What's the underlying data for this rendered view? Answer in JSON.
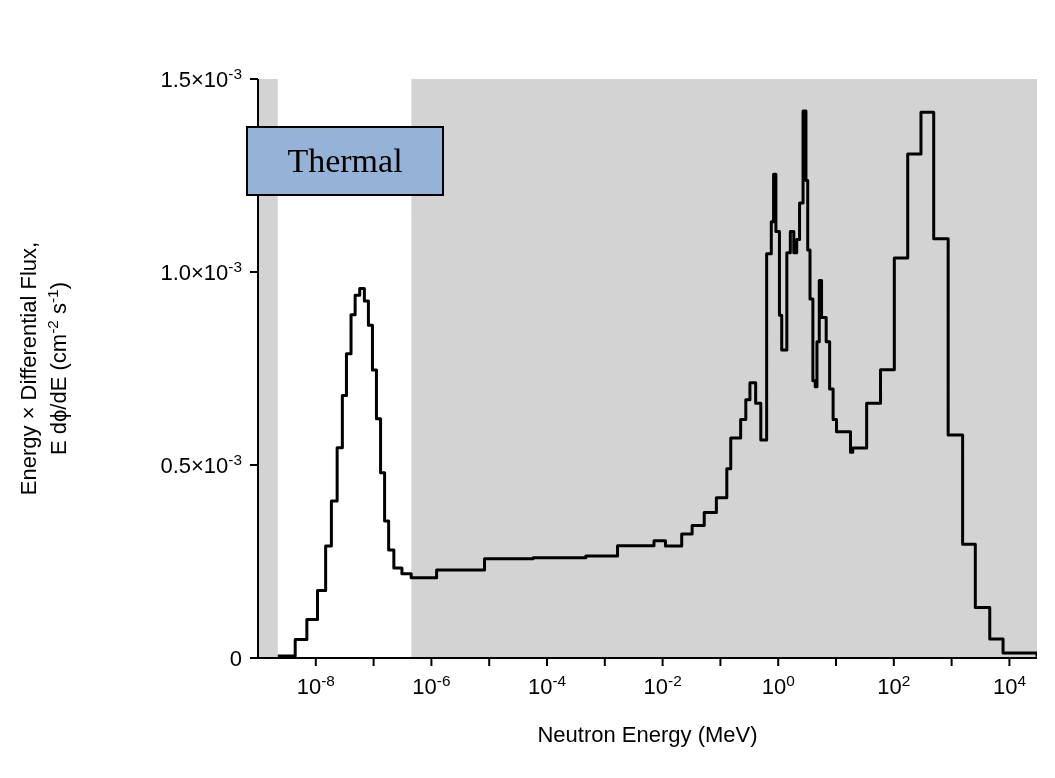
{
  "chart_data": {
    "type": "step",
    "xlabel": "Neutron Energy  (MeV)",
    "ylabel": "Energy × Differential Flux,\nE dϕ/dE  (cm$^{-2}$ s$^{-1}$)",
    "log": "x",
    "grid": false,
    "legend": false,
    "marker": "none",
    "line_style": "solid",
    "xlim": [
      1e-09,
      30000
    ],
    "ylim": [
      0,
      0.0015
    ],
    "xticks": [
      {
        "value": 1e-08,
        "label": "10$^{-8}$"
      },
      {
        "value": 1e-07,
        "label": null
      },
      {
        "value": 1e-06,
        "label": "10$^{-6}$"
      },
      {
        "value": 1e-05,
        "label": null
      },
      {
        "value": 0.0001,
        "label": "10$^{-4}$"
      },
      {
        "value": 0.001,
        "label": null
      },
      {
        "value": 0.01,
        "label": "10$^{-2}$"
      },
      {
        "value": 0.1,
        "label": null
      },
      {
        "value": 1,
        "label": "10$^{0}$"
      },
      {
        "value": 10,
        "label": null
      },
      {
        "value": 100,
        "label": "10$^{2}$"
      },
      {
        "value": 1000,
        "label": null
      },
      {
        "value": 10000,
        "label": "10$^{4}$"
      }
    ],
    "yticks": [
      0,
      {
        "value": 0.0005,
        "label": "0.5×10$^{-3}$"
      },
      {
        "value": 0.001,
        "label": "1.0×10$^{-3}$"
      },
      {
        "value": 0.0015,
        "label": "1.5×10$^{-3}$"
      }
    ],
    "bands": [
      {
        "axis": "x",
        "from": 1e-09,
        "to": 2.2e-09,
        "color": "#c8c8c8"
      },
      {
        "axis": "x",
        "from": 4.5e-07,
        "to": 30000,
        "color": "#c8c8c8"
      }
    ],
    "annotations": [
      "Thermal"
    ],
    "series": [
      {
        "color": "#000000",
        "x": [
          2.2e-09,
          4.4e-09,
          7e-09,
          1.07e-08,
          1.48e-08,
          1.86e-08,
          2.34e-08,
          2.88e-08,
          3.39e-08,
          4.07e-08,
          4.79e-08,
          5.75e-08,
          6.92e-08,
          8.13e-08,
          9.55e-08,
          1.12e-07,
          1.32e-07,
          1.55e-07,
          1.82e-07,
          2.24e-07,
          3.09e-07,
          4.47e-07,
          1.23e-06,
          8.3e-06,
          5.75e-05,
          0.00047,
          0.00166,
          0.0071,
          0.0112,
          0.0214,
          0.0324,
          0.0525,
          0.0851,
          0.129,
          0.151,
          0.224,
          0.275,
          0.324,
          0.407,
          0.5,
          0.631,
          0.759,
          0.832,
          0.912,
          1.05,
          1.15,
          1.41,
          1.62,
          1.86,
          2.09,
          2.34,
          2.69,
          3.02,
          3.24,
          3.55,
          3.98,
          4.37,
          4.68,
          5.13,
          5.62,
          6.76,
          7.76,
          8.91,
          10.2,
          17.8,
          19.5,
          33.9,
          58.9,
          102,
          174,
          295,
          490,
          871,
          1550,
          2570,
          4570,
          7760,
          30000
        ],
        "values": [
          5e-06,
          4.8e-05,
          0.0001,
          0.000175,
          0.00029,
          0.000407,
          0.000545,
          0.00068,
          0.000788,
          0.000889,
          0.00094,
          0.000957,
          0.000925,
          0.000862,
          0.000746,
          0.00062,
          0.00048,
          0.000355,
          0.00028,
          0.000233,
          0.000218,
          0.000208,
          0.000228,
          0.000257,
          0.00026,
          0.000264,
          0.000291,
          0.000304,
          0.00029,
          0.000321,
          0.000343,
          0.000377,
          0.000415,
          0.00049,
          0.00057,
          0.000618,
          0.000669,
          0.000713,
          0.00066,
          0.000565,
          0.001047,
          0.00113,
          0.001253,
          0.001105,
          0.000888,
          0.000798,
          0.00105,
          0.001105,
          0.00105,
          0.001084,
          0.001179,
          0.001417,
          0.001237,
          0.001057,
          0.00093,
          0.000718,
          0.000703,
          0.000819,
          0.000978,
          0.000882,
          0.000819,
          0.000697,
          0.000618,
          0.000586,
          0.000533,
          0.000544,
          0.00066,
          0.000747,
          0.001036,
          0.001306,
          0.001414,
          0.001086,
          0.000578,
          0.000295,
          0.000131,
          4.9e-05,
          1.3e-05,
          3e-06
        ]
      }
    ]
  }
}
